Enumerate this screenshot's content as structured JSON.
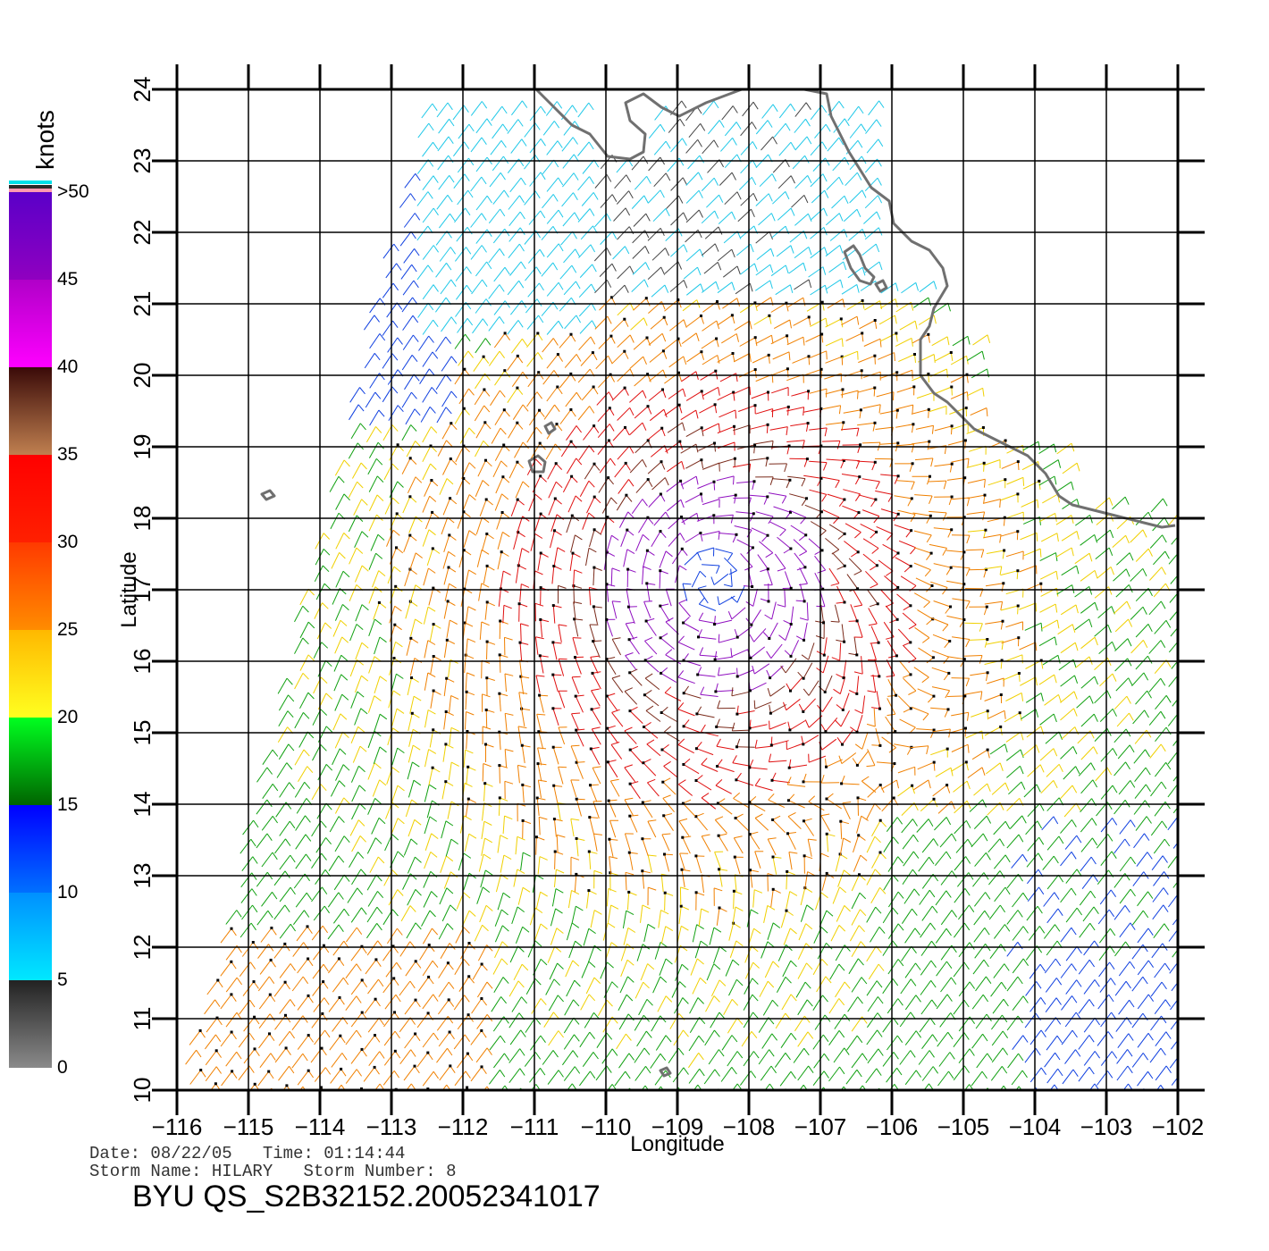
{
  "map": {
    "xlabel": "Longitude",
    "ylabel": "Latitude",
    "lon_range": [
      -116,
      -102
    ],
    "lat_range": [
      10,
      24
    ],
    "lon_ticks": [
      "-116",
      "-115",
      "-114",
      "-113",
      "-112",
      "-111",
      "-110",
      "-109",
      "-108",
      "-107",
      "-106",
      "-105",
      "-104",
      "-103",
      "-102"
    ],
    "lat_ticks": [
      "10",
      "11",
      "12",
      "13",
      "14",
      "15",
      "16",
      "17",
      "18",
      "19",
      "20",
      "21",
      "22",
      "23",
      "24"
    ],
    "storm_center": {
      "lon": -108.5,
      "lat": 17.1
    },
    "grid": true
  },
  "colorbar": {
    "units": "knots",
    "labels": [
      "0",
      "5",
      "10",
      "15",
      "20",
      "25",
      "30",
      "35",
      "40",
      "45",
      ">50"
    ],
    "bands": [
      {
        "from": 0,
        "to": 5,
        "colors": [
          "#8a8a8a",
          "#222222"
        ]
      },
      {
        "from": 5,
        "to": 10,
        "colors": [
          "#00e8ff",
          "#0090ff"
        ]
      },
      {
        "from": 10,
        "to": 15,
        "colors": [
          "#0070ff",
          "#0000ff"
        ]
      },
      {
        "from": 15,
        "to": 20,
        "colors": [
          "#006400",
          "#00ff20"
        ]
      },
      {
        "from": 20,
        "to": 25,
        "colors": [
          "#ffff20",
          "#ffb800"
        ]
      },
      {
        "from": 25,
        "to": 30,
        "colors": [
          "#ff8c00",
          "#ff3a00"
        ]
      },
      {
        "from": 30,
        "to": 35,
        "colors": [
          "#ff2000",
          "#ff0000"
        ]
      },
      {
        "from": 35,
        "to": 40,
        "colors": [
          "#c08050",
          "#3a0a08"
        ]
      },
      {
        "from": 40,
        "to": 45,
        "colors": [
          "#ff00ff",
          "#b000c8"
        ]
      },
      {
        "from": 45,
        "to": 50,
        "colors": [
          "#9000c0",
          "#5a00c8"
        ]
      }
    ]
  },
  "info": {
    "date_line": "Date: 08/22/05   Time: 01:14:44",
    "storm_line": "Storm Name: HILARY   Storm Number: 8",
    "product_id": "BYU QS_S2B32152.20052341017"
  }
}
